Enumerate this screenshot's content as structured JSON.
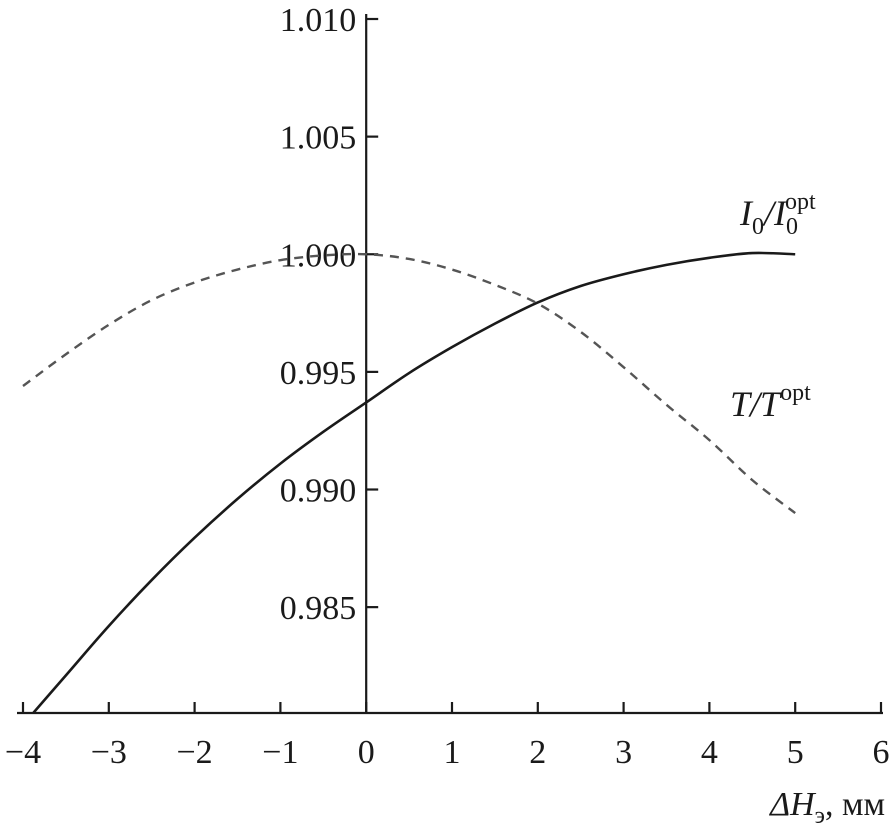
{
  "chart_data": {
    "type": "line",
    "xlabel": {
      "symbol": "ΔH",
      "subscript": "э",
      "unit": ", мм"
    },
    "xlim": [
      -4,
      6
    ],
    "ylim": [
      0.9805,
      1.01
    ],
    "x_ticks": [
      -4,
      -3,
      -2,
      -1,
      0,
      1,
      2,
      3,
      4,
      5,
      6
    ],
    "x_tick_labels": [
      "−4",
      "−3",
      "−2",
      "−1",
      "0",
      "1",
      "2",
      "3",
      "4",
      "5",
      "6"
    ],
    "y_ticks": [
      0.985,
      0.99,
      0.995,
      1.0,
      1.005,
      1.01
    ],
    "y_tick_labels": [
      "0.985",
      "0.990",
      "0.995",
      "1.000",
      "1.005",
      "1.010"
    ],
    "series": [
      {
        "name": "I0/I0opt",
        "label": {
          "main": "I",
          "sub": "0",
          "slash": "/",
          "main2": "I",
          "sub2": "0",
          "sup2": "opt"
        },
        "style": "solid",
        "color": "#1a1a1a",
        "x": [
          -4,
          -3.5,
          -3,
          -2.5,
          -2,
          -1.5,
          -1,
          -0.5,
          0,
          0.5,
          1,
          1.5,
          2,
          2.5,
          3,
          3.5,
          4,
          4.5,
          5
        ],
        "y": [
          0.98,
          0.9821,
          0.9842,
          0.98615,
          0.98795,
          0.9896,
          0.9911,
          0.99245,
          0.9937,
          0.99495,
          0.99605,
          0.99705,
          0.99795,
          0.99865,
          0.99915,
          0.99955,
          0.99985,
          1.00005,
          1.0
        ]
      },
      {
        "name": "T/Topt",
        "label": {
          "main": "T",
          "slash": "/",
          "main2": "T",
          "sup2": "opt"
        },
        "style": "dashed",
        "color": "#555555",
        "x": [
          -4,
          -3.5,
          -3,
          -2.5,
          -2,
          -1.5,
          -1,
          -0.5,
          0,
          0.5,
          1,
          1.5,
          2,
          2.5,
          3,
          3.5,
          4,
          4.5,
          5
        ],
        "y": [
          0.9944,
          0.99575,
          0.997,
          0.99805,
          0.9988,
          0.99935,
          0.99975,
          0.99995,
          1.0,
          0.9998,
          0.99935,
          0.9987,
          0.9979,
          0.9967,
          0.9952,
          0.9936,
          0.9921,
          0.9904,
          0.989
        ]
      }
    ]
  }
}
